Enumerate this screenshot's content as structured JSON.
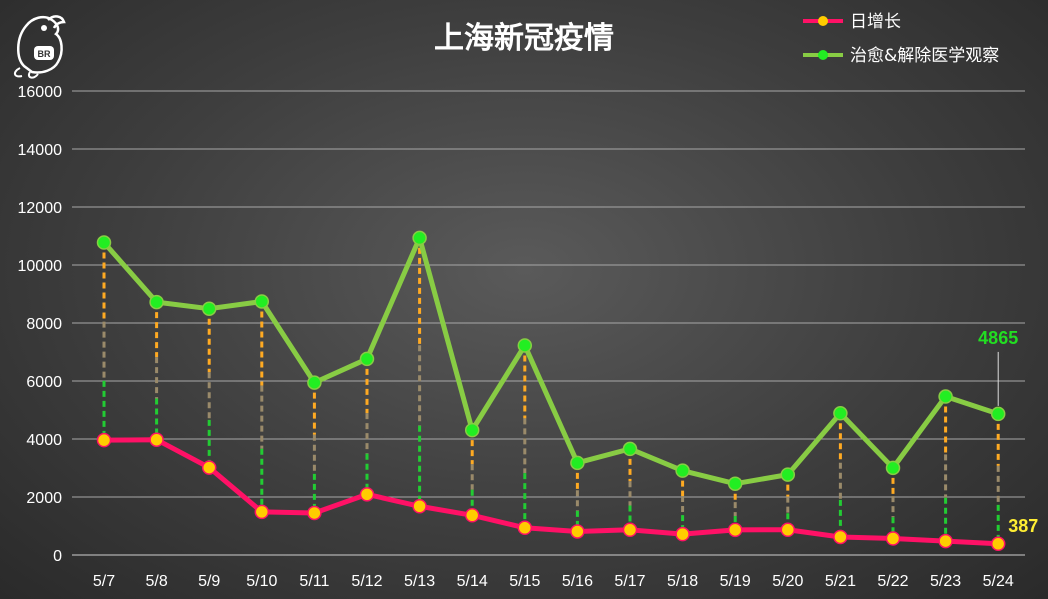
{
  "chart_data": {
    "type": "line",
    "title": "上海新冠疫情",
    "categories": [
      "5/7",
      "5/8",
      "5/9",
      "5/10",
      "5/11",
      "5/12",
      "5/13",
      "5/14",
      "5/15",
      "5/16",
      "5/17",
      "5/18",
      "5/19",
      "5/20",
      "5/21",
      "5/22",
      "5/23",
      "5/24"
    ],
    "series": [
      {
        "name": "日增长",
        "color": "#ff1166",
        "marker_color": "#ffcc00",
        "values": [
          3961,
          3975,
          3014,
          1487,
          1449,
          2092,
          1681,
          1369,
          938,
          811,
          869,
          719,
          868,
          870,
          621,
          570,
          480,
          387
        ]
      },
      {
        "name": "治愈&解除医学观察",
        "color": "#88cc44",
        "marker_color": "#22ee22",
        "values": [
          10775,
          8720,
          8493,
          8742,
          5945,
          6761,
          10934,
          4306,
          7226,
          3178,
          3659,
          2908,
          2459,
          2772,
          4886,
          3003,
          5464,
          4865
        ]
      }
    ],
    "ylim": [
      0,
      16000
    ],
    "yticks": [
      0,
      2000,
      4000,
      6000,
      8000,
      10000,
      12000,
      14000,
      16000
    ],
    "grid": true,
    "legend_position": "top-right",
    "annotations": {
      "green_last": "4865",
      "red_last": "387"
    },
    "drop_line_colors": [
      "#ffaa22",
      "#9a8a6a",
      "#22cc33"
    ]
  }
}
